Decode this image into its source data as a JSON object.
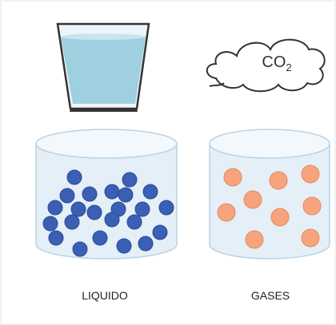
{
  "cloud": {
    "formula": "CO",
    "subscript": "2"
  },
  "labels": {
    "liquid": "LIQUIDO",
    "gas": "GASES"
  }
}
